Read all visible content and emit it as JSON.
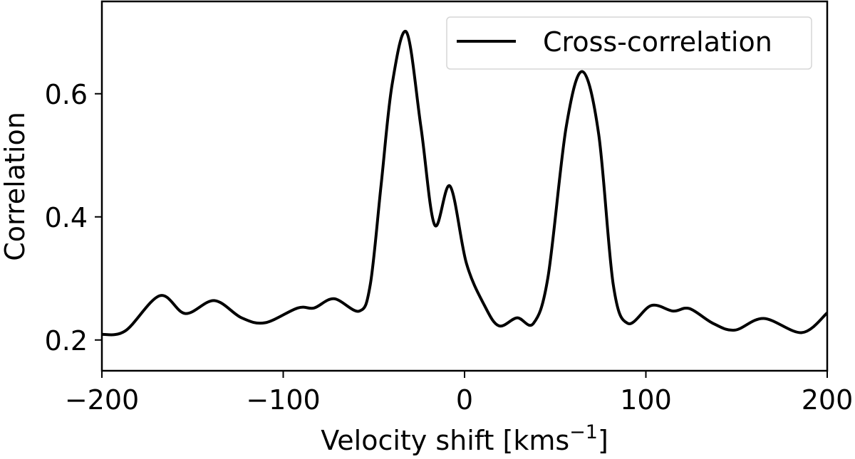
{
  "chart_data": {
    "type": "line",
    "title": "",
    "xlabel": "Velocity shift [kms⁻¹]",
    "xlabel_main": "Velocity shift [kms",
    "xlabel_sup": "−1",
    "xlabel_close": "]",
    "ylabel": "Correlation",
    "xlim": [
      -200,
      200
    ],
    "ylim": [
      0.15,
      0.75
    ],
    "xticks": [
      -200,
      -100,
      0,
      100,
      200
    ],
    "xtick_labels": [
      "−200",
      "−100",
      "0",
      "100",
      "200"
    ],
    "yticks": [
      0.2,
      0.4,
      0.6
    ],
    "ytick_labels": [
      "0.2",
      "0.4",
      "0.6"
    ],
    "grid": false,
    "legend_position": "upper right",
    "series": [
      {
        "name": "Cross-correlation",
        "color": "#000000",
        "x": [
          -200,
          -187,
          -168,
          -154,
          -138,
          -123,
          -110,
          -92,
          -83,
          -72,
          -58,
          -52,
          -46,
          -40,
          -32,
          -24,
          -16.5,
          -8,
          1,
          11,
          19,
          29,
          38,
          46,
          56,
          65,
          74,
          82,
          90,
          103,
          115,
          124,
          137,
          149,
          165,
          186,
          200
        ],
        "values": [
          0.209,
          0.215,
          0.272,
          0.243,
          0.264,
          0.236,
          0.228,
          0.252,
          0.252,
          0.267,
          0.247,
          0.29,
          0.452,
          0.614,
          0.7,
          0.545,
          0.387,
          0.45,
          0.325,
          0.256,
          0.223,
          0.236,
          0.227,
          0.302,
          0.545,
          0.636,
          0.534,
          0.29,
          0.227,
          0.256,
          0.247,
          0.251,
          0.227,
          0.216,
          0.235,
          0.212,
          0.244
        ]
      }
    ]
  },
  "legend": {
    "items": [
      {
        "label": "Cross-correlation",
        "color": "#000000"
      }
    ]
  }
}
